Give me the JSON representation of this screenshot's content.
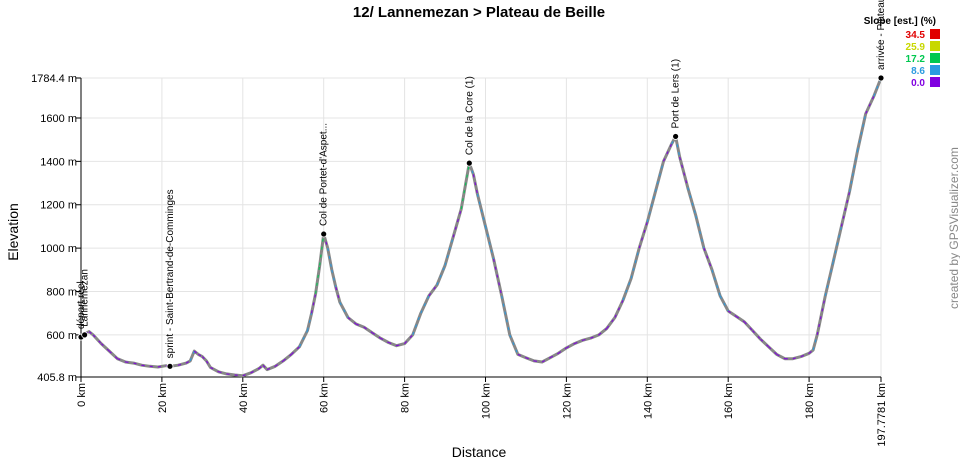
{
  "chart_data": {
    "type": "line",
    "title": "12/ Lannemezan > Plateau de Beille",
    "xlabel": "Distance",
    "ylabel": "Elevation",
    "xlim": [
      0,
      197.7781
    ],
    "ylim": [
      405.8,
      1784.4
    ],
    "x_ticks": [
      {
        "value": 0,
        "label": "0 km"
      },
      {
        "value": 20,
        "label": "20 km"
      },
      {
        "value": 40,
        "label": "40 km"
      },
      {
        "value": 60,
        "label": "60 km"
      },
      {
        "value": 80,
        "label": "80 km"
      },
      {
        "value": 100,
        "label": "100 km"
      },
      {
        "value": 120,
        "label": "120 km"
      },
      {
        "value": 140,
        "label": "140 km"
      },
      {
        "value": 160,
        "label": "160 km"
      },
      {
        "value": 180,
        "label": "180 km"
      },
      {
        "value": 197.7781,
        "label": "197.7781 km"
      }
    ],
    "y_ticks": [
      {
        "value": 405.8,
        "label": "405.8 m"
      },
      {
        "value": 600,
        "label": "600 m"
      },
      {
        "value": 800,
        "label": "800 m"
      },
      {
        "value": 1000,
        "label": "1000 m"
      },
      {
        "value": 1200,
        "label": "1200 m"
      },
      {
        "value": 1400,
        "label": "1400 m"
      },
      {
        "value": 1600,
        "label": "1600 m"
      },
      {
        "value": 1784.4,
        "label": "1784.4 m"
      }
    ],
    "grid": true,
    "series": [
      {
        "x": [
          0,
          1,
          2,
          3,
          5,
          7,
          9,
          11,
          13,
          15,
          17,
          19,
          21,
          22,
          24,
          26,
          27,
          28,
          29,
          30,
          31,
          32,
          34,
          36,
          38,
          40,
          42,
          44,
          45,
          46,
          48,
          50,
          52,
          54,
          56,
          57,
          58,
          59,
          60,
          61,
          62,
          63,
          64,
          66,
          68,
          70,
          72,
          74,
          76,
          78,
          80,
          82,
          84,
          86,
          88,
          90,
          92,
          94,
          96,
          97,
          98,
          100,
          102,
          104,
          106,
          108,
          110,
          112,
          114,
          116,
          118,
          120,
          122,
          124,
          126,
          128,
          130,
          132,
          134,
          136,
          138,
          140,
          142,
          144,
          146,
          147,
          148,
          150,
          152,
          154,
          156,
          158,
          160,
          162,
          164,
          166,
          168,
          170,
          172,
          174,
          176,
          178,
          180,
          181,
          182,
          184,
          186,
          188,
          190,
          192,
          194,
          196,
          197.7781
        ],
        "y": [
          590,
          605,
          615,
          600,
          560,
          525,
          490,
          475,
          470,
          460,
          455,
          452,
          458,
          455,
          460,
          470,
          480,
          525,
          510,
          500,
          480,
          450,
          430,
          420,
          415,
          412,
          425,
          445,
          460,
          440,
          455,
          480,
          510,
          545,
          620,
          700,
          790,
          920,
          1065,
          1000,
          900,
          820,
          750,
          680,
          650,
          635,
          610,
          585,
          565,
          550,
          560,
          600,
          700,
          780,
          830,
          920,
          1050,
          1180,
          1392,
          1340,
          1250,
          1100,
          950,
          780,
          600,
          510,
          495,
          480,
          475,
          495,
          515,
          540,
          560,
          575,
          585,
          600,
          630,
          680,
          760,
          860,
          1000,
          1120,
          1260,
          1400,
          1480,
          1515,
          1420,
          1280,
          1150,
          1000,
          900,
          780,
          710,
          685,
          660,
          620,
          580,
          545,
          510,
          490,
          490,
          500,
          515,
          530,
          600,
          780,
          940,
          1100,
          1260,
          1450,
          1620,
          1700,
          1784.4
        ]
      }
    ],
    "waypoints": [
      {
        "km": 0,
        "elev": 590,
        "label": "départ réel"
      },
      {
        "km": 0.9,
        "elev": 600,
        "label": "Lannemezan"
      },
      {
        "km": 22,
        "elev": 455,
        "label": "sprint - Saint-Bertrand-de-Comminges"
      },
      {
        "km": 60,
        "elev": 1065,
        "label": "Col de Portet-d'Aspet..."
      },
      {
        "km": 96,
        "elev": 1392,
        "label": "Col de la Core (1)"
      },
      {
        "km": 147,
        "elev": 1515,
        "label": "Port de Lers (1)"
      },
      {
        "km": 197.7781,
        "elev": 1784.4,
        "label": "arrivée - Plateau"
      }
    ],
    "slope_legend": {
      "title": "Slope [est.] (%)",
      "entries": [
        {
          "value": "34.5",
          "color": "#e00000"
        },
        {
          "value": "25.9",
          "color": "#c8d800"
        },
        {
          "value": "17.2",
          "color": "#00c850"
        },
        {
          "value": "8.6",
          "color": "#2a9ae0"
        },
        {
          "value": "0.0",
          "color": "#8000e0"
        }
      ]
    },
    "line_color": "#888888",
    "credit": "created by GPSVisualizer.com"
  }
}
